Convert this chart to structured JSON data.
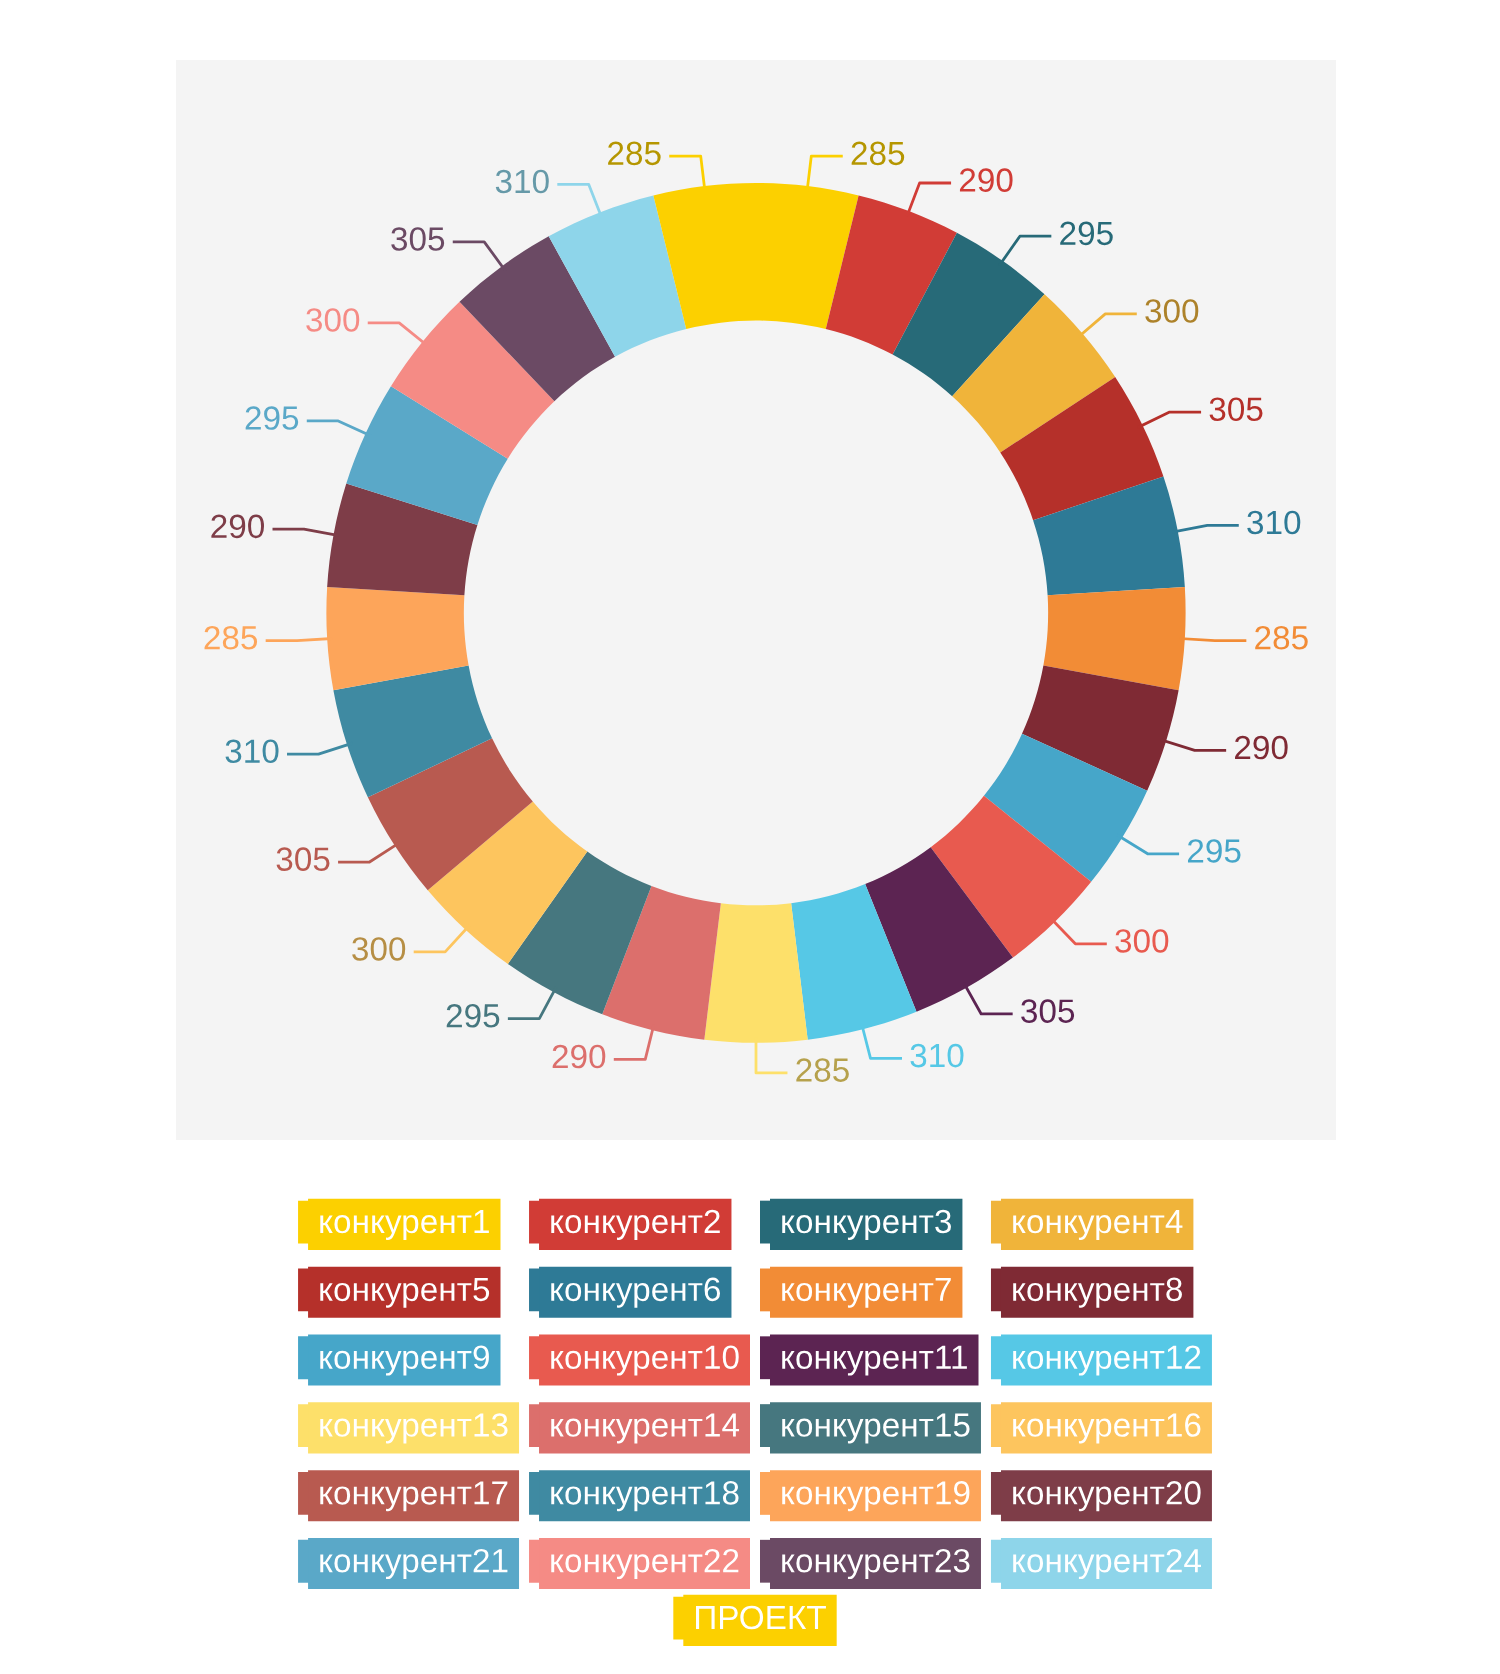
{
  "chart_data": {
    "type": "donut",
    "categories": [
      "конкурент1",
      "конкурент2",
      "конкурент3",
      "конкурент4",
      "конкурент5",
      "конкурент6",
      "конкурент7",
      "конкурент8",
      "конкурент9",
      "конкурент10",
      "конкурент11",
      "конкурент12",
      "конкурент13",
      "конкурент14",
      "конкурент15",
      "конкурент16",
      "конкурент17",
      "конкурент18",
      "конкурент19",
      "конкурент20",
      "конкурент21",
      "конкурент22",
      "конкурент23",
      "конкурент24",
      "ПРОЕКТ"
    ],
    "values": [
      285,
      290,
      295,
      300,
      305,
      310,
      285,
      290,
      295,
      300,
      305,
      310,
      285,
      290,
      295,
      300,
      305,
      310,
      285,
      290,
      295,
      300,
      305,
      310,
      285
    ],
    "colors": [
      "#fcd000",
      "#d13c36",
      "#276a78",
      "#f0b43a",
      "#b5302a",
      "#2e7a96",
      "#f28c36",
      "#7f2a34",
      "#46a6c9",
      "#e85a4f",
      "#5c2452",
      "#56c8e6",
      "#fde06a",
      "#dc6f6c",
      "#46777f",
      "#fdc55e",
      "#b85a50",
      "#3f8aa2",
      "#fda55a",
      "#7e3d48",
      "#5aa8c8",
      "#f58b85",
      "#6b4a64",
      "#8ed5ea",
      "#fcd000"
    ],
    "data_labels": true,
    "legend": "bottom"
  }
}
